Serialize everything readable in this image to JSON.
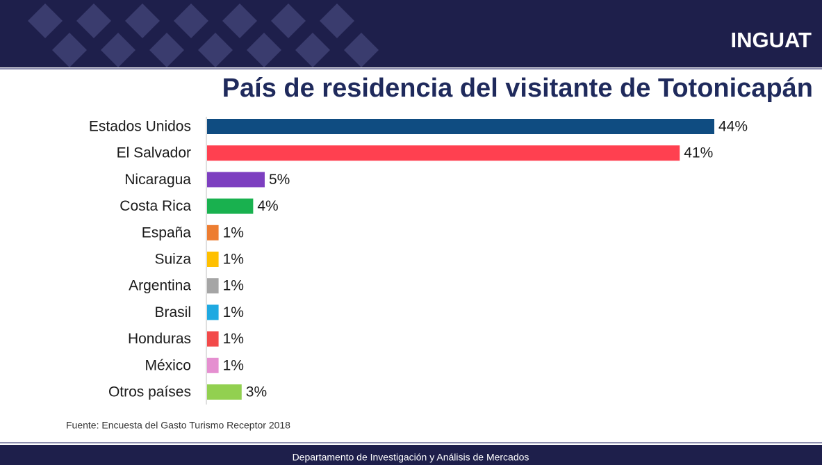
{
  "header": {
    "brand": "INGUAT"
  },
  "chart_data": {
    "type": "bar",
    "orientation": "horizontal",
    "title": "País de residencia del visitante de Totonicapán",
    "categories": [
      "Estados Unidos",
      "El Salvador",
      "Nicaragua",
      "Costa Rica",
      "España",
      "Suiza",
      "Argentina",
      "Brasil",
      "Honduras",
      "México",
      "Otros países"
    ],
    "values": [
      44,
      41,
      5,
      4,
      1,
      1,
      1,
      1,
      1,
      1,
      3
    ],
    "value_labels": [
      "44%",
      "41%",
      "5%",
      "4%",
      "1%",
      "1%",
      "1%",
      "1%",
      "1%",
      "1%",
      "3%"
    ],
    "colors": [
      "#0f4c81",
      "#ff4050",
      "#7d3fc0",
      "#19b14f",
      "#ed7d31",
      "#ffc000",
      "#a5a5a5",
      "#1fa9e1",
      "#f24a4a",
      "#e58fd0",
      "#92d050"
    ]
  },
  "source": "Fuente: Encuesta del Gasto Turismo  Receptor  2018",
  "footer": "Departamento de Investigación y Análisis de Mercados"
}
